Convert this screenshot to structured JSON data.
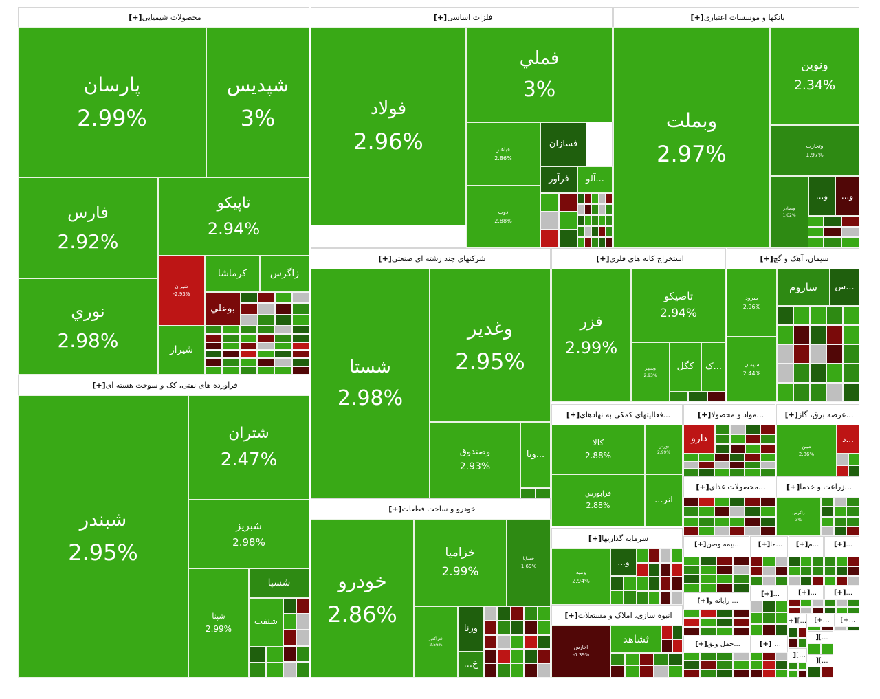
{
  "colors": {
    "up": "#39a916",
    "up_medium": "#2e8a13",
    "up_dark": "#1f5f0d",
    "down": "#bd1515",
    "down_dark": "#7a0a0a",
    "down_deep": "#510707",
    "gray": "#bfbfbf"
  },
  "chart_data": {
    "type": "treemap",
    "sectors": [
      {
        "name": "محصولات شیمیایی",
        "expand_label": "[+]",
        "tiles": [
          {
            "label": "پارسان",
            "value": "2.99%",
            "change": 2.99
          },
          {
            "label": "شپدیس",
            "value": "3%",
            "change": 3
          },
          {
            "label": "فارس",
            "value": "2.92%",
            "change": 2.92
          },
          {
            "label": "تاپیکو",
            "value": "2.94%",
            "change": 2.94
          },
          {
            "label": "نوري",
            "value": "2.98%",
            "change": 2.98
          },
          {
            "label": "شیران",
            "value": "-2.93%",
            "change": -2.93
          },
          {
            "label": "کرماشا",
            "value": ""
          },
          {
            "label": "زاگرس",
            "value": ""
          },
          {
            "label": "بوعلي",
            "value": ""
          },
          {
            "label": "شیراز",
            "value": ""
          }
        ]
      },
      {
        "name": "فلزات اساسی",
        "expand_label": "[+]",
        "tiles": [
          {
            "label": "فولاد",
            "value": "2.96%",
            "change": 2.96
          },
          {
            "label": "فملي",
            "value": "3%",
            "change": 3
          },
          {
            "label": "فباهنر",
            "value": "2.86%",
            "change": 2.86
          },
          {
            "label": "فسازان",
            "value": ""
          },
          {
            "label": "فرآور",
            "value": ""
          },
          {
            "label": "آلو...",
            "value": ""
          },
          {
            "label": "ذوب",
            "value": "2.88%",
            "change": 2.88
          }
        ]
      },
      {
        "name": "بانکها و موسسات اعتباری",
        "expand_label": "[+]",
        "tiles": [
          {
            "label": "وبملت",
            "value": "2.97%",
            "change": 2.97
          },
          {
            "label": "ونوین",
            "value": "2.34%",
            "change": 2.34
          },
          {
            "label": "وتجارت",
            "value": "1.97%",
            "change": 1.97
          },
          {
            "label": "وبصادر",
            "value": "1.02%",
            "change": 1.02
          },
          {
            "label": "...و",
            "value": ""
          },
          {
            "label": "...و",
            "value": ""
          }
        ]
      },
      {
        "name": "فراورده های نفتی، کک و سوخت هسته ای",
        "expand_label": "[+]",
        "tiles": [
          {
            "label": "شبندر",
            "value": "2.95%",
            "change": 2.95
          },
          {
            "label": "شتران",
            "value": "2.47%",
            "change": 2.47
          },
          {
            "label": "شبریز",
            "value": "2.98%",
            "change": 2.98
          },
          {
            "label": "شسپا",
            "value": ""
          },
          {
            "label": "شپنا",
            "value": "2.99%",
            "change": 2.99
          },
          {
            "label": "شنفت",
            "value": ""
          }
        ]
      },
      {
        "name": "شرکتهای چند رشته ای صنعتی",
        "expand_label": "[+]",
        "tiles": [
          {
            "label": "شستا",
            "value": "2.98%",
            "change": 2.98
          },
          {
            "label": "وغدیر",
            "value": "2.95%",
            "change": 2.95
          },
          {
            "label": "وصندوق",
            "value": "2.93%",
            "change": 2.93
          },
          {
            "label": "وبا...",
            "value": ""
          }
        ]
      },
      {
        "name": "استخراج کانه های فلزی",
        "expand_label": "[+]",
        "tiles": [
          {
            "label": "فزر",
            "value": "2.99%",
            "change": 2.99
          },
          {
            "label": "تاصیکو",
            "value": "2.94%",
            "change": 2.94
          },
          {
            "label": "وسپهر",
            "value": "2.93%",
            "change": 2.93
          },
          {
            "label": "کگل",
            "value": ""
          },
          {
            "label": "ک...",
            "value": ""
          }
        ]
      },
      {
        "name": "سیمان، آهک و گچ",
        "expand_label": "[+]",
        "tiles": [
          {
            "label": "سرود",
            "value": "2.96%",
            "change": 2.96
          },
          {
            "label": "ساروم",
            "value": ""
          },
          {
            "label": "س...",
            "value": ""
          },
          {
            "label": "سیمان",
            "value": "2.44%",
            "change": 2.44
          }
        ]
      },
      {
        "name": "خودرو و ساخت قطعات",
        "expand_label": "[+]",
        "tiles": [
          {
            "label": "خودرو",
            "value": "2.86%",
            "change": 2.86
          },
          {
            "label": "خزامیا",
            "value": "2.99%",
            "change": 2.99
          },
          {
            "label": "خساپا",
            "value": "1.69%",
            "change": 1.69
          },
          {
            "label": "ختراکتور",
            "value": "2.56%",
            "change": 2.56
          },
          {
            "label": "ورنا",
            "value": ""
          },
          {
            "label": "...خ",
            "value": ""
          }
        ]
      },
      {
        "name": "...فعالیتهاي کمکي به نهادهاي",
        "expand_label": "[+]",
        "tiles": [
          {
            "label": "کالا",
            "value": "2.88%",
            "change": 2.88
          },
          {
            "label": "بورس",
            "value": "2.99%",
            "change": 2.99
          },
          {
            "label": "فرابورس",
            "value": "2.88%",
            "change": 2.88
          },
          {
            "label": "...انر",
            "value": ""
          }
        ]
      },
      {
        "name": "...مواد و محصولا",
        "expand_label": "[+]",
        "tiles": [
          {
            "label": "دارو",
            "value": ""
          }
        ]
      },
      {
        "name": "...عرضه برق، گاز",
        "expand_label": "[+]",
        "tiles": [
          {
            "label": "مبین",
            "value": "2.86%",
            "change": 2.86
          },
          {
            "label": "د...",
            "value": ""
          }
        ]
      },
      {
        "name": "سرمایه گذاریها",
        "expand_label": "[+]",
        "tiles": [
          {
            "label": "ومیه",
            "value": "2.94%",
            "change": 2.94
          },
          {
            "label": "...و",
            "value": ""
          }
        ]
      },
      {
        "name": "...محصولات غذای",
        "expand_label": "[+]",
        "tiles": []
      },
      {
        "name": "...زراعت و خدما",
        "expand_label": "[+]",
        "tiles": [
          {
            "label": "زاگرس",
            "value": "3%",
            "change": 3
          }
        ]
      },
      {
        "name": "انبوه سازی، املاک و مستغلات",
        "expand_label": "[+]",
        "tiles": [
          {
            "label": "اخارس",
            "value": "-0.39%",
            "change": -0.39
          },
          {
            "label": "ثشاهد",
            "value": ""
          }
        ]
      },
      {
        "name": "...بیمه وصن",
        "expand_label": "[+]",
        "tiles": []
      },
      {
        "name": "...ما",
        "expand_label": "[+]",
        "tiles": []
      },
      {
        "name": "...م",
        "expand_label": "[+]",
        "tiles": []
      },
      {
        "name": "...",
        "expand_label": "[+]",
        "tiles": []
      },
      {
        "name": "... رایانه و",
        "expand_label": "[+]",
        "tiles": []
      },
      {
        "name": "...",
        "expand_label": "[+]",
        "tiles": []
      },
      {
        "name": "...",
        "expand_label": "[+]",
        "tiles": []
      },
      {
        "name": "...",
        "expand_label": "[+]",
        "tiles": []
      },
      {
        "name": "...حمل ونق",
        "expand_label": "[+]",
        "tiles": []
      },
      {
        "name": "...!",
        "expand_label": "[+]",
        "tiles": []
      },
      {
        "name": "...]",
        "expand_label": "[+",
        "tiles": []
      },
      {
        "name": "...+]",
        "expand_label": "",
        "tiles": []
      },
      {
        "name": "...+]",
        "expand_label": "",
        "tiles": []
      },
      {
        "name": "...]",
        "expand_label": "[",
        "tiles": []
      },
      {
        "name": "...]",
        "expand_label": "[",
        "tiles": []
      },
      {
        "name": "...]",
        "expand_label": "[",
        "tiles": []
      }
    ]
  }
}
